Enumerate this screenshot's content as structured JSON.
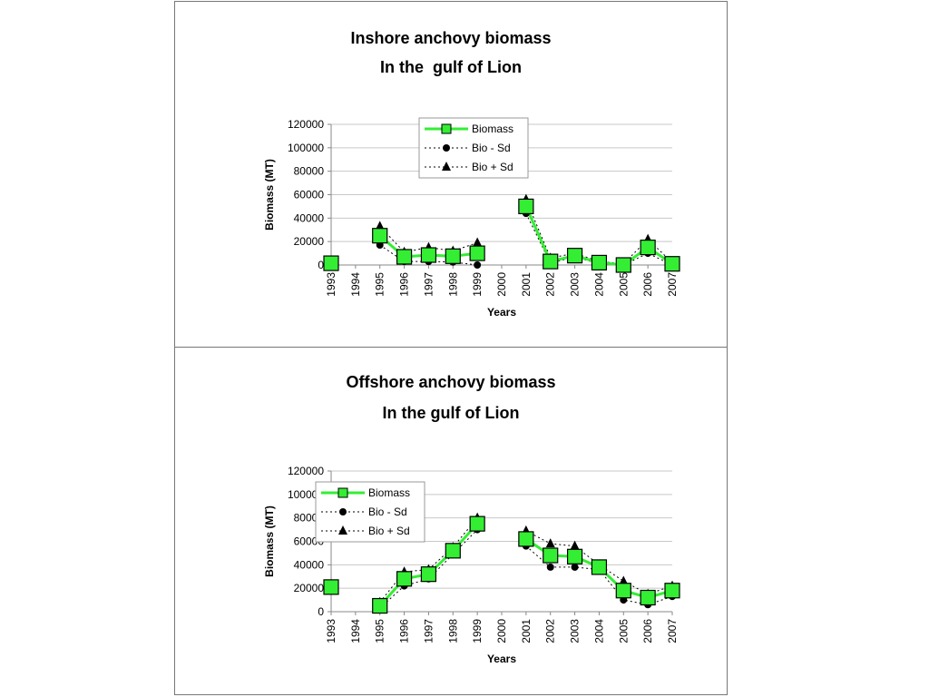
{
  "chart_data": [
    {
      "type": "line",
      "title": "Inshore anchovy biomass",
      "subtitle": "In the  gulf of Lion",
      "xlabel": "Years",
      "ylabel": "Biomass (MT)",
      "ylim": [
        0,
        120000
      ],
      "yticks": [
        "0",
        "20000",
        "40000",
        "60000",
        "80000",
        "100000",
        "120000"
      ],
      "categories": [
        "1993",
        "1994",
        "1995",
        "1996",
        "1997",
        "1998",
        "1999",
        "2000",
        "2001",
        "2002",
        "2003",
        "2004",
        "2005",
        "2006",
        "2007"
      ],
      "grid": true,
      "legend_position": "top-center",
      "series": [
        {
          "name": "Biomass",
          "color": "#33ee33",
          "marker": "square",
          "values": [
            1500,
            null,
            25000,
            7000,
            8500,
            7500,
            10000,
            null,
            50000,
            3000,
            8000,
            2000,
            0,
            15000,
            1000
          ]
        },
        {
          "name": "Bio - Sd",
          "color": "#000000",
          "marker": "circle",
          "values": [
            0,
            null,
            17000,
            3000,
            3000,
            2500,
            0,
            null,
            44000,
            1500,
            7000,
            1000,
            0,
            10000,
            0
          ]
        },
        {
          "name": "Bio + Sd",
          "color": "#000000",
          "marker": "triangle",
          "values": [
            3000,
            null,
            33000,
            11000,
            15000,
            12000,
            19000,
            null,
            56000,
            6000,
            10000,
            3000,
            1000,
            22000,
            2000
          ]
        }
      ]
    },
    {
      "type": "line",
      "title": "Offshore anchovy biomass",
      "subtitle": "In the gulf of Lion",
      "xlabel": "Years",
      "ylabel": "Biomass (MT)",
      "ylim": [
        0,
        120000
      ],
      "yticks": [
        "0",
        "20000",
        "40000",
        "60000",
        "80000",
        "100000",
        "120000"
      ],
      "categories": [
        "1993",
        "1994",
        "1995",
        "1996",
        "1997",
        "1998",
        "1999",
        "2000",
        "2001",
        "2002",
        "2003",
        "2004",
        "2005",
        "2006",
        "2007"
      ],
      "grid": true,
      "legend_position": "top-left",
      "series": [
        {
          "name": "Biomass",
          "color": "#33ee33",
          "marker": "square",
          "values": [
            21000,
            null,
            5000,
            28000,
            32000,
            52000,
            75000,
            null,
            62000,
            48000,
            47000,
            38000,
            18000,
            12000,
            18000
          ]
        },
        {
          "name": "Bio - Sd",
          "color": "#000000",
          "marker": "circle",
          "values": [
            19000,
            null,
            3000,
            22000,
            28000,
            49000,
            70000,
            null,
            56000,
            38000,
            38000,
            36000,
            10000,
            6000,
            13000
          ]
        },
        {
          "name": "Bio + Sd",
          "color": "#000000",
          "marker": "triangle",
          "values": [
            23000,
            null,
            8000,
            34000,
            36000,
            55000,
            80000,
            null,
            69000,
            58000,
            56000,
            40000,
            26000,
            15000,
            22000
          ]
        }
      ]
    }
  ]
}
